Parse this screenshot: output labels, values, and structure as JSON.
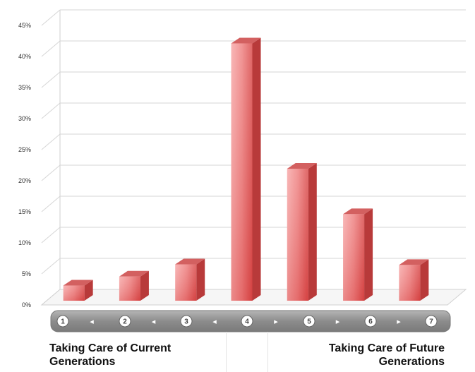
{
  "chart_data": {
    "type": "bar",
    "categories": [
      "1",
      "2",
      "3",
      "4",
      "5",
      "6",
      "7"
    ],
    "values": [
      2.5,
      4.0,
      6.0,
      42.5,
      21.8,
      14.3,
      5.9
    ],
    "value_unit": "%",
    "ylim": [
      0,
      45
    ],
    "yticks": [
      "0%",
      "5%",
      "10%",
      "15%",
      "20%",
      "25%",
      "30%",
      "35%",
      "40%",
      "45%"
    ],
    "grid": true,
    "bar_color": "#e65a5a",
    "arrows_between": [
      "◂",
      "◂",
      "◂",
      "▸",
      "▸",
      "▸"
    ]
  },
  "labels": {
    "left": "Taking Care of Current Generations",
    "right": "Taking Care of Future Generations"
  }
}
